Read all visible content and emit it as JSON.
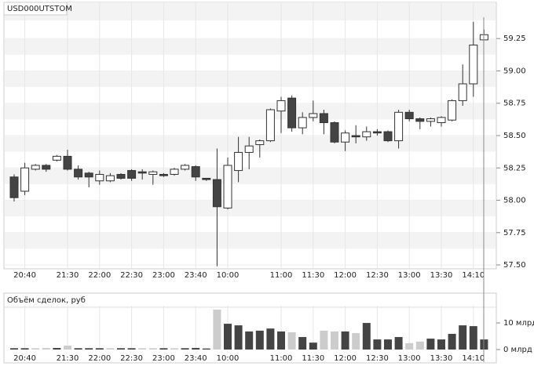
{
  "chart_data": [
    {
      "type": "candlestick",
      "title": "USD000UTSTOM",
      "categories": [
        null,
        "20:40",
        null,
        null,
        null,
        "21:30",
        null,
        null,
        "22:00",
        null,
        null,
        "22:30",
        null,
        null,
        "23:00",
        null,
        null,
        "23:40",
        null,
        null,
        "10:00",
        null,
        null,
        null,
        null,
        "11:00",
        null,
        null,
        "11:30",
        null,
        null,
        "12:00",
        null,
        null,
        "12:30",
        null,
        null,
        "13:00",
        null,
        null,
        "13:30",
        null,
        null,
        "14:10",
        null
      ],
      "open": [
        58.18,
        58.07,
        58.24,
        58.27,
        58.31,
        58.34,
        58.24,
        58.21,
        58.15,
        58.15,
        58.2,
        58.23,
        58.22,
        58.2,
        58.2,
        58.2,
        58.24,
        58.26,
        58.17,
        58.16,
        57.94,
        58.23,
        58.37,
        58.43,
        58.46,
        58.69,
        58.79,
        58.56,
        58.64,
        58.67,
        58.6,
        58.45,
        58.5,
        58.49,
        58.53,
        58.53,
        58.46,
        58.68,
        58.63,
        58.61,
        58.6,
        58.62,
        58.77,
        58.9,
        59.24
      ],
      "high": [
        58.2,
        58.29,
        58.28,
        58.28,
        58.35,
        58.39,
        58.27,
        58.22,
        58.23,
        58.21,
        58.21,
        58.24,
        58.24,
        58.23,
        58.21,
        58.25,
        58.28,
        58.27,
        58.17,
        58.4,
        58.33,
        58.49,
        58.49,
        58.47,
        58.71,
        58.8,
        58.81,
        58.68,
        58.77,
        58.7,
        58.61,
        58.54,
        58.58,
        58.57,
        58.55,
        58.54,
        58.7,
        58.7,
        58.64,
        58.64,
        58.65,
        58.78,
        59.05,
        59.38,
        59.32
      ],
      "low": [
        57.99,
        58.04,
        58.23,
        58.22,
        58.3,
        58.23,
        58.16,
        58.1,
        58.12,
        58.14,
        58.16,
        58.15,
        58.16,
        58.12,
        58.18,
        58.19,
        58.23,
        58.15,
        58.15,
        57.49,
        57.93,
        58.14,
        58.24,
        58.33,
        58.45,
        58.52,
        58.53,
        58.51,
        58.61,
        58.51,
        58.44,
        58.38,
        58.44,
        58.46,
        58.5,
        58.45,
        58.4,
        58.61,
        58.55,
        58.57,
        58.57,
        58.61,
        58.73,
        58.8,
        59.24
      ],
      "close": [
        58.02,
        58.25,
        58.27,
        58.24,
        58.34,
        58.24,
        58.18,
        58.18,
        58.2,
        58.19,
        58.17,
        58.17,
        58.21,
        58.22,
        58.19,
        58.24,
        58.27,
        58.18,
        58.16,
        57.95,
        58.27,
        58.37,
        58.42,
        58.46,
        58.7,
        58.77,
        58.56,
        58.64,
        58.67,
        58.6,
        58.45,
        58.52,
        58.49,
        58.53,
        58.52,
        58.46,
        58.68,
        58.63,
        58.61,
        58.63,
        58.64,
        58.77,
        58.9,
        59.2,
        59.28
      ],
      "up_color": "#ffffff",
      "down_color": "#444444",
      "ylim": [
        57.47,
        59.53
      ],
      "yticks": [
        {
          "value": 57.5,
          "label": "57.50"
        },
        57.75,
        {
          "value": 58,
          "label": "58.00"
        },
        58.25,
        {
          "value": 58.5,
          "label": "58.50"
        },
        58.75,
        {
          "value": 59,
          "label": "59.00"
        },
        59.25
      ]
    },
    {
      "type": "bar",
      "title": "Объём сделок, руб",
      "categories": [
        null,
        "20:40",
        null,
        null,
        null,
        "21:30",
        null,
        null,
        "22:00",
        null,
        null,
        "22:30",
        null,
        null,
        "23:00",
        null,
        null,
        "23:40",
        null,
        null,
        "10:00",
        null,
        null,
        null,
        null,
        "11:00",
        null,
        null,
        "11:30",
        null,
        null,
        "12:00",
        null,
        null,
        "12:30",
        null,
        null,
        "13:00",
        null,
        null,
        "13:30",
        null,
        null,
        "14:10",
        null
      ],
      "values": [
        0.5,
        0.5,
        0.5,
        0.6,
        0.6,
        1.5,
        0.5,
        0.5,
        0.5,
        0.5,
        0.5,
        0.5,
        0.5,
        0.5,
        0.5,
        0.5,
        0.5,
        0.6,
        0.4,
        15,
        9.7,
        9.1,
        6.8,
        7.1,
        7.9,
        6.8,
        6.5,
        4.7,
        2.6,
        7.1,
        6.8,
        6.8,
        6.2,
        10,
        3.8,
        3.8,
        4.7,
        2.4,
        3.0,
        4.1,
        3.8,
        5.9,
        9.1,
        8.8,
        3.8
      ],
      "colors": [
        "#444444",
        "#444444",
        "#cccccc",
        "#cccccc",
        "#444444",
        "#cccccc",
        "#444444",
        "#444444",
        "#444444",
        "#cccccc",
        "#444444",
        "#444444",
        "#cccccc",
        "#cccccc",
        "#444444",
        "#cccccc",
        "#444444",
        "#444444",
        "#444444",
        "#cccccc",
        "#444444",
        "#444444",
        "#444444",
        "#444444",
        "#444444",
        "#444444",
        "#cccccc",
        "#444444",
        "#444444",
        "#cccccc",
        "#cccccc",
        "#444444",
        "#cccccc",
        "#444444",
        "#444444",
        "#444444",
        "#444444",
        "#cccccc",
        "#cccccc",
        "#444444",
        "#444444",
        "#444444",
        "#444444",
        "#444444",
        "#444444"
      ],
      "ylim": [
        0,
        16.5
      ],
      "yticks": [
        {
          "value": 0,
          "label": "0 млрд"
        },
        {
          "value": 10,
          "label": "10 млрд"
        }
      ]
    }
  ]
}
